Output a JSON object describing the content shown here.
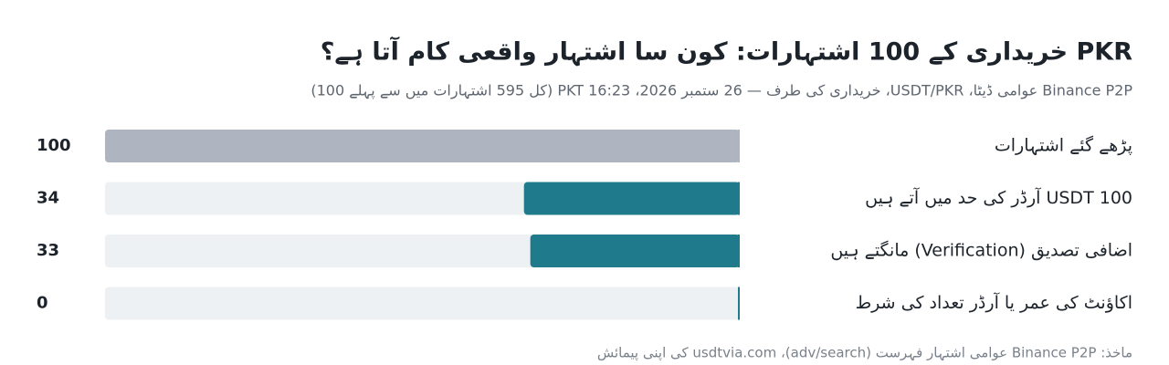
{
  "chart_data": {
    "type": "bar",
    "orientation": "horizontal-rtl",
    "title": "PKR خریداری کے 100 اشتہارات: کون سا اشتہار واقعی کام آتا ہے؟",
    "subtitle": "Binance P2P عوامی ڈیٹا، USDT/PKR، خریداری کی طرف — 26 ستمبر 2026، 16:23 PKT (کل 595 اشتہارات میں سے پہلے 100)",
    "categories": [
      "پڑھے گئے اشتہارات",
      "100 USDT آرڈر کی حد میں آتے ہیں",
      "اضافی تصدیق (Verification) مانگتے ہیں",
      "اکاؤنٹ کی عمر یا آرڈر تعداد کی شرط"
    ],
    "values": [
      100,
      34,
      33,
      0
    ],
    "colors": [
      "#aeb5c0",
      "#1f7a8c",
      "#1f7a8c",
      "#1f7a8c"
    ],
    "xlim": [
      0,
      100
    ],
    "source": "ماخذ: Binance P2P عوامی اشتہار فہرست (adv/search)، usdtvia.com کی اپنی پیمائش"
  }
}
